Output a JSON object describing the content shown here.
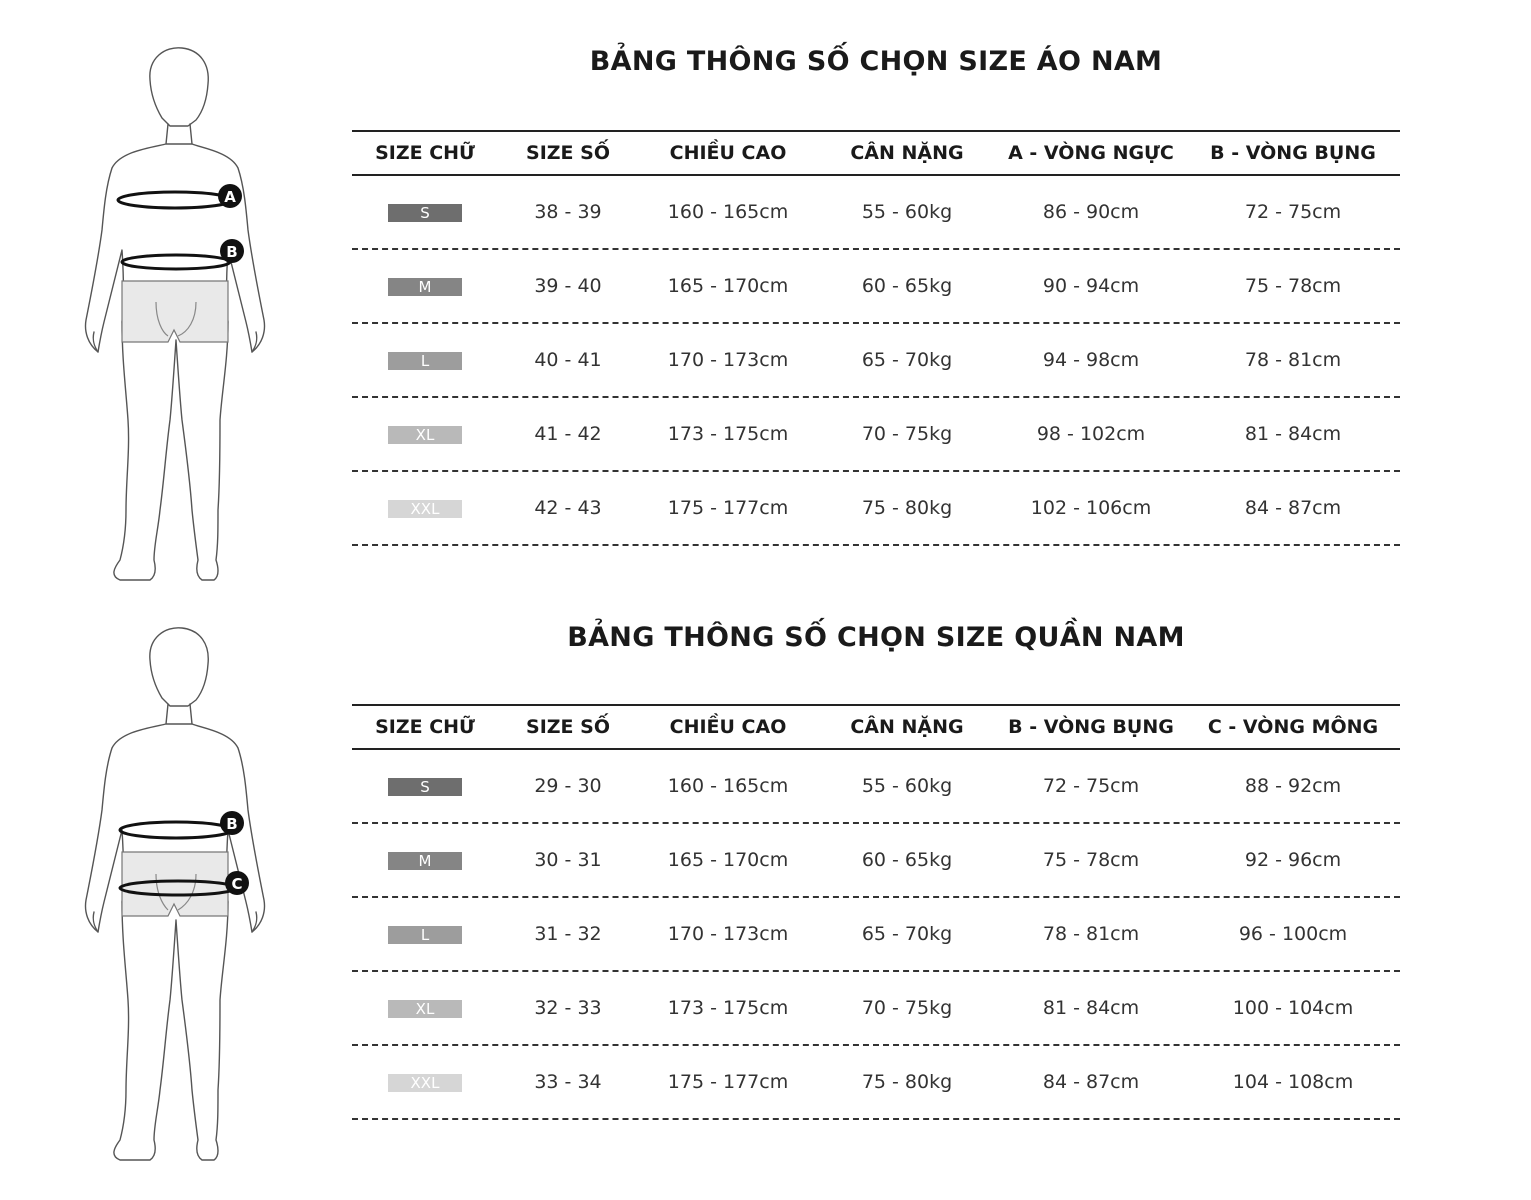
{
  "shirt": {
    "title": "BẢNG THÔNG SỐ CHỌN SIZE ÁO NAM",
    "headers": [
      "SIZE CHỮ",
      "SIZE SỐ",
      "CHIỀU CAO",
      "CÂN NẶNG",
      "A - VÒNG NGỰC",
      "B - VÒNG BỤNG"
    ],
    "markers": [
      "A",
      "B"
    ],
    "rows": [
      {
        "size": "S",
        "num": "38 - 39",
        "height": "160 - 165cm",
        "weight": "55 - 60kg",
        "m1": "86 - 90cm",
        "m2": "72 - 75cm",
        "color": "#6e6e6e"
      },
      {
        "size": "M",
        "num": "39 - 40",
        "height": "165 - 170cm",
        "weight": "60 - 65kg",
        "m1": "90 - 94cm",
        "m2": "75 - 78cm",
        "color": "#858585"
      },
      {
        "size": "L",
        "num": "40 - 41",
        "height": "170 - 173cm",
        "weight": "65 - 70kg",
        "m1": "94 - 98cm",
        "m2": "78 - 81cm",
        "color": "#9d9d9d"
      },
      {
        "size": "XL",
        "num": "41 - 42",
        "height": "173 - 175cm",
        "weight": "70 - 75kg",
        "m1": "98 - 102cm",
        "m2": "81 - 84cm",
        "color": "#b9b9b9"
      },
      {
        "size": "XXL",
        "num": "42 - 43",
        "height": "175 - 177cm",
        "weight": "75 - 80kg",
        "m1": "102 - 106cm",
        "m2": "84 - 87cm",
        "color": "#d6d6d6"
      }
    ]
  },
  "pants": {
    "title": "BẢNG THÔNG SỐ CHỌN SIZE QUẦN NAM",
    "headers": [
      "SIZE CHỮ",
      "SIZE SỐ",
      "CHIỀU CAO",
      "CÂN NẶNG",
      "B - VÒNG BỤNG",
      "C - VÒNG MÔNG"
    ],
    "markers": [
      "B",
      "C"
    ],
    "rows": [
      {
        "size": "S",
        "num": "29 - 30",
        "height": "160 - 165cm",
        "weight": "55 - 60kg",
        "m1": "72 - 75cm",
        "m2": "88 - 92cm",
        "color": "#6e6e6e"
      },
      {
        "size": "M",
        "num": "30 - 31",
        "height": "165 - 170cm",
        "weight": "60 - 65kg",
        "m1": "75 - 78cm",
        "m2": "92 - 96cm",
        "color": "#858585"
      },
      {
        "size": "L",
        "num": "31 - 32",
        "height": "170 - 173cm",
        "weight": "65 - 70kg",
        "m1": "78 - 81cm",
        "m2": "96 - 100cm",
        "color": "#9d9d9d"
      },
      {
        "size": "XL",
        "num": "32 - 33",
        "height": "173 - 175cm",
        "weight": "70 - 75kg",
        "m1": "81 - 84cm",
        "m2": "100 - 104cm",
        "color": "#b9b9b9"
      },
      {
        "size": "XXL",
        "num": "33 - 34",
        "height": "175 - 177cm",
        "weight": "75 - 80kg",
        "m1": "84 - 87cm",
        "m2": "104 - 108cm",
        "color": "#d6d6d6"
      }
    ]
  }
}
